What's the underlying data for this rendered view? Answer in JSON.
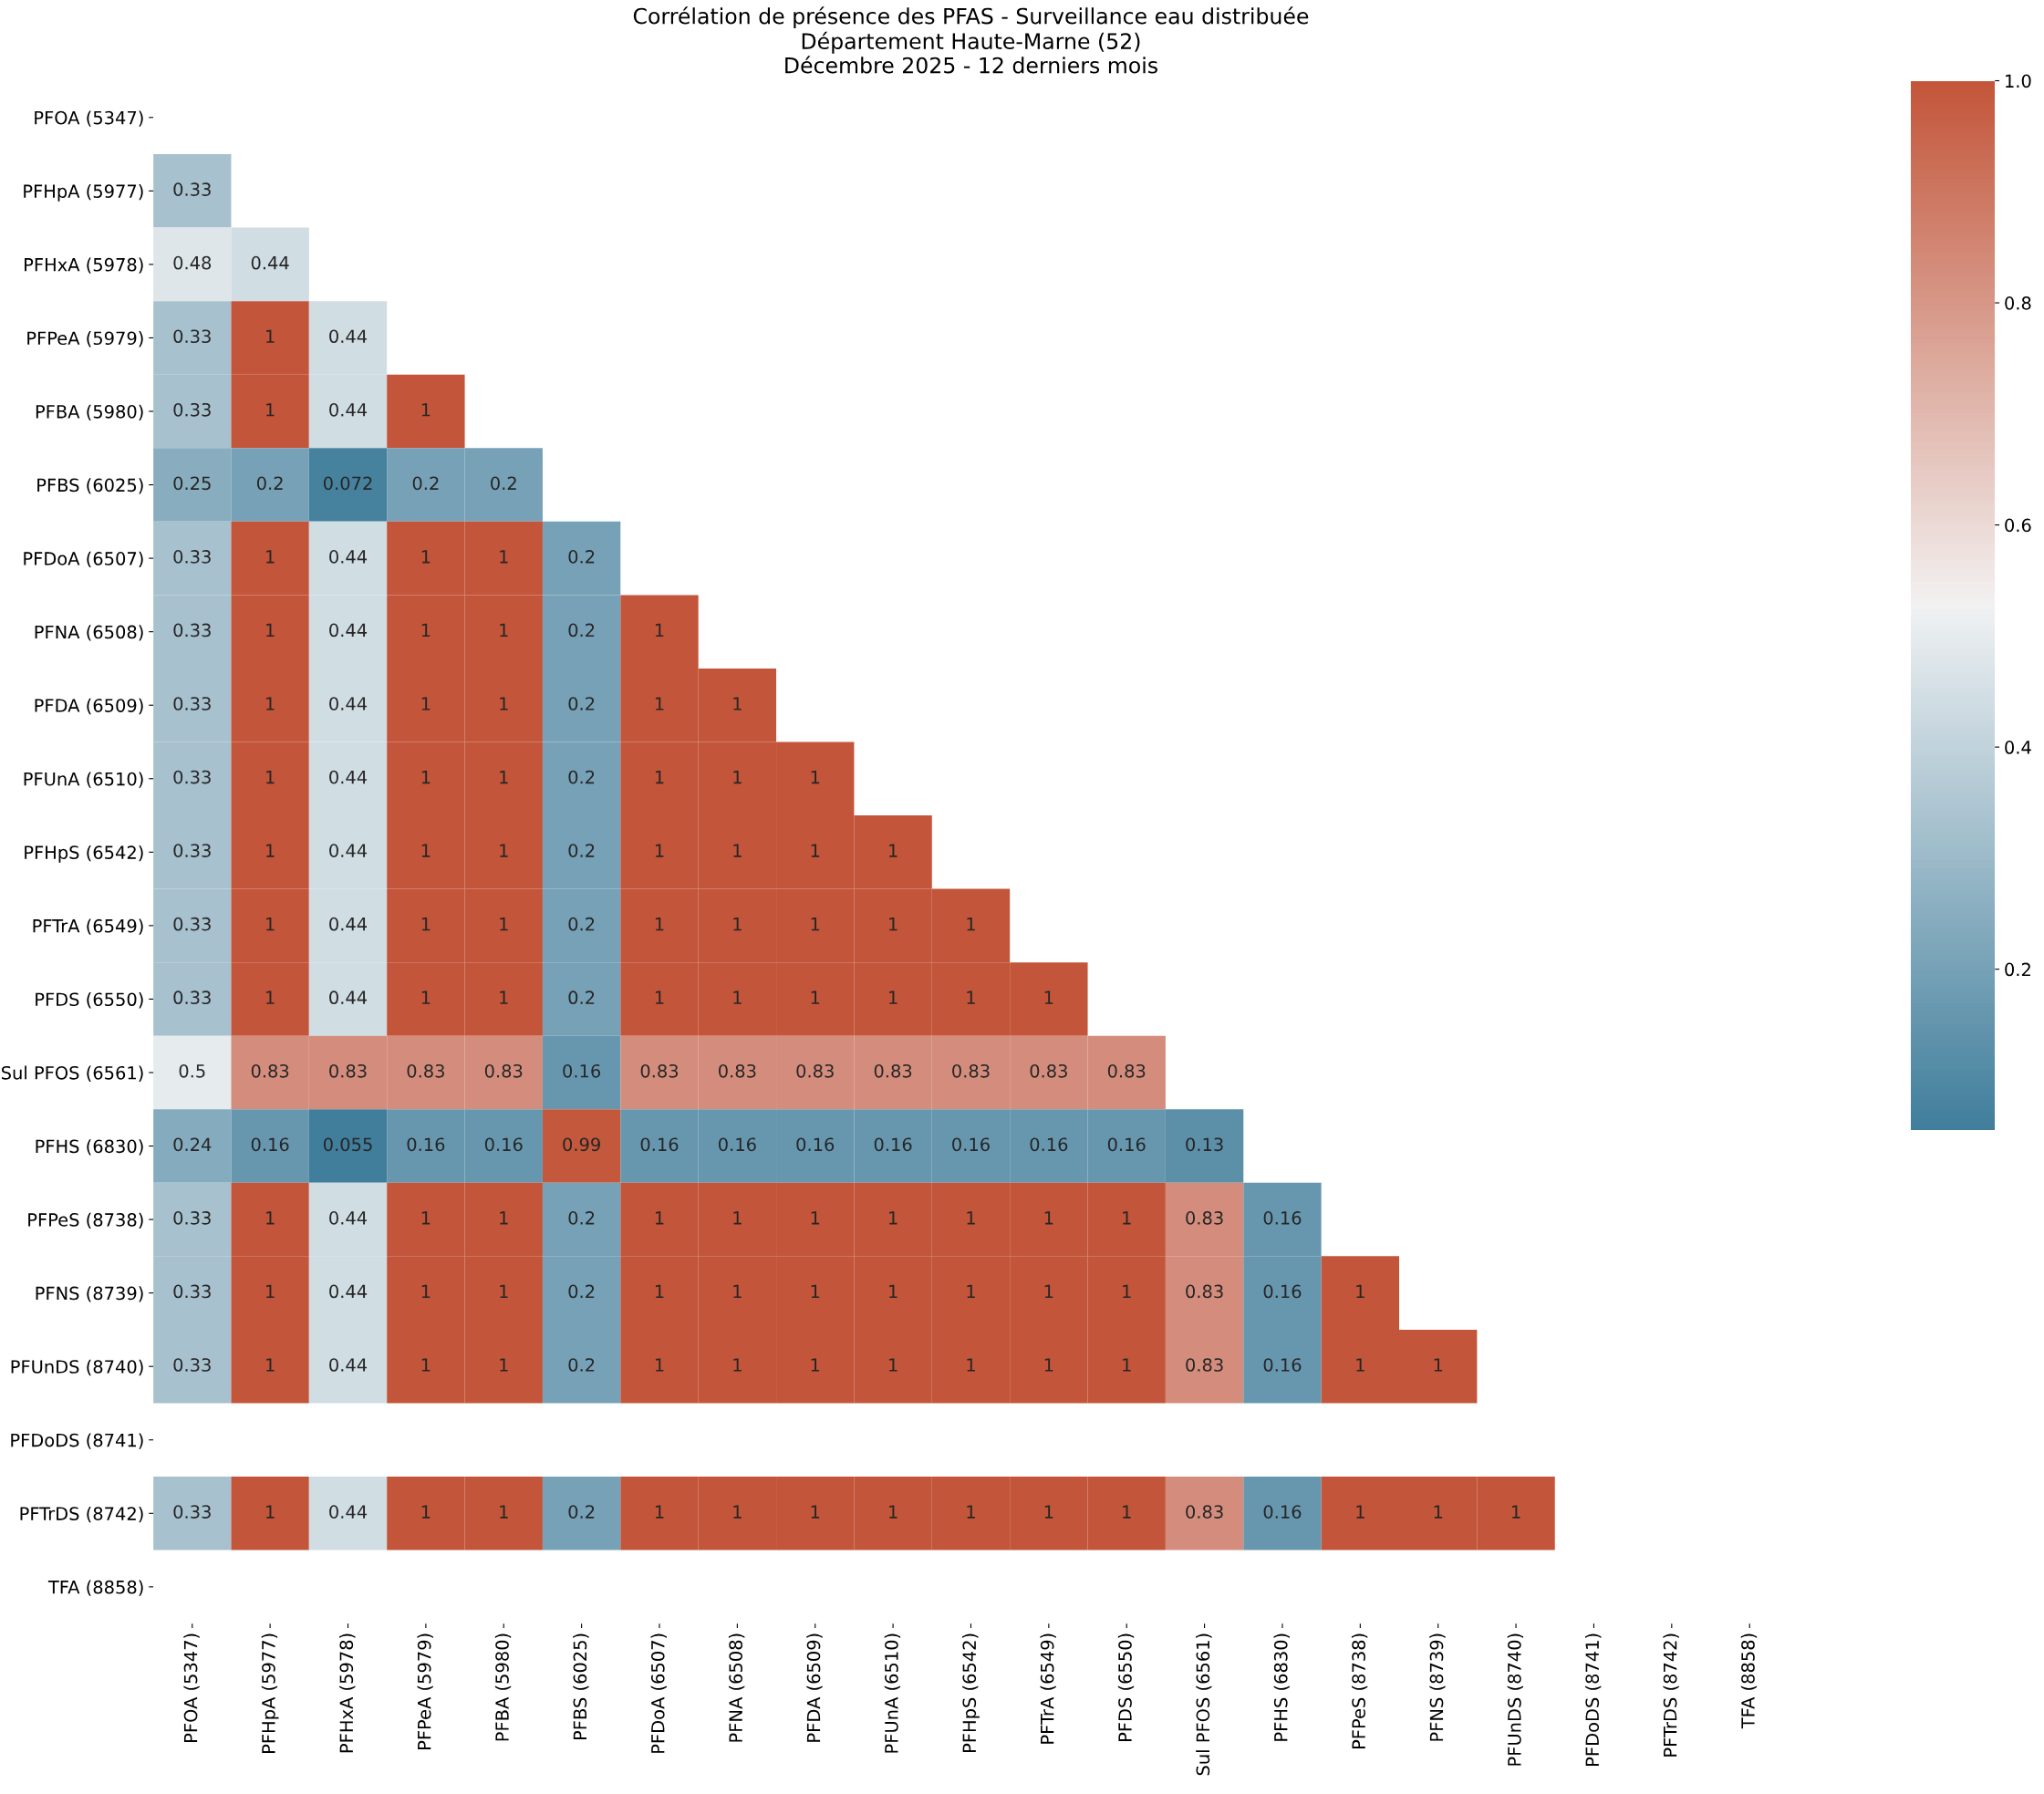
{
  "chart_data": {
    "type": "heatmap",
    "title": "Corrélation de présence des PFAS - Surveillance eau distribuée\nDépartement Haute-Marne (52)\nDécembre 2025 - 12 derniers mois",
    "categories": [
      "PFOA (5347)",
      "PFHpA (5977)",
      "PFHxA (5978)",
      "PFPeA (5979)",
      "PFBA (5980)",
      "PFBS (6025)",
      "PFDoA (6507)",
      "PFNA (6508)",
      "PFDA (6509)",
      "PFUnA (6510)",
      "PFHpS (6542)",
      "PFTrA (6549)",
      "PFDS (6550)",
      "Sul PFOS (6561)",
      "PFHS (6830)",
      "PFPeS (8738)",
      "PFNS (8739)",
      "PFUnDS (8740)",
      "PFDoDS (8741)",
      "PFTrDS (8742)",
      "TFA (8858)"
    ],
    "y_categories": [
      "PFOA (5347)",
      "PFHpA (5977)",
      "PFHxA (5978)",
      "PFPeA (5979)",
      "PFBA (5980)",
      "PFBS (6025)",
      "PFDoA (6507)",
      "PFNA (6508)",
      "PFDA (6509)",
      "PFUnA (6510)",
      "PFHpS (6542)",
      "PFTrA (6549)",
      "PFDS (6550)",
      "Sul PFOS (6561)",
      "PFHS (6830)",
      "PFPeS (8738)",
      "PFNS (8739)",
      "PFUnDS (8740)",
      "PFDoDS (8741)",
      "PFTrDS (8742)",
      "TFA (8858)"
    ],
    "cells": [
      [
        null,
        null,
        null,
        null,
        null,
        null,
        null,
        null,
        null,
        null,
        null,
        null,
        null,
        null,
        null,
        null,
        null,
        null,
        null,
        null,
        null
      ],
      [
        0.33,
        null,
        null,
        null,
        null,
        null,
        null,
        null,
        null,
        null,
        null,
        null,
        null,
        null,
        null,
        null,
        null,
        null,
        null,
        null,
        null
      ],
      [
        0.48,
        0.44,
        null,
        null,
        null,
        null,
        null,
        null,
        null,
        null,
        null,
        null,
        null,
        null,
        null,
        null,
        null,
        null,
        null,
        null,
        null
      ],
      [
        0.33,
        1,
        0.44,
        null,
        null,
        null,
        null,
        null,
        null,
        null,
        null,
        null,
        null,
        null,
        null,
        null,
        null,
        null,
        null,
        null,
        null
      ],
      [
        0.33,
        1,
        0.44,
        1,
        null,
        null,
        null,
        null,
        null,
        null,
        null,
        null,
        null,
        null,
        null,
        null,
        null,
        null,
        null,
        null,
        null
      ],
      [
        0.25,
        0.2,
        0.072,
        0.2,
        0.2,
        null,
        null,
        null,
        null,
        null,
        null,
        null,
        null,
        null,
        null,
        null,
        null,
        null,
        null,
        null,
        null
      ],
      [
        0.33,
        1,
        0.44,
        1,
        1,
        0.2,
        null,
        null,
        null,
        null,
        null,
        null,
        null,
        null,
        null,
        null,
        null,
        null,
        null,
        null,
        null
      ],
      [
        0.33,
        1,
        0.44,
        1,
        1,
        0.2,
        1,
        null,
        null,
        null,
        null,
        null,
        null,
        null,
        null,
        null,
        null,
        null,
        null,
        null,
        null
      ],
      [
        0.33,
        1,
        0.44,
        1,
        1,
        0.2,
        1,
        1,
        null,
        null,
        null,
        null,
        null,
        null,
        null,
        null,
        null,
        null,
        null,
        null,
        null
      ],
      [
        0.33,
        1,
        0.44,
        1,
        1,
        0.2,
        1,
        1,
        1,
        null,
        null,
        null,
        null,
        null,
        null,
        null,
        null,
        null,
        null,
        null,
        null
      ],
      [
        0.33,
        1,
        0.44,
        1,
        1,
        0.2,
        1,
        1,
        1,
        1,
        null,
        null,
        null,
        null,
        null,
        null,
        null,
        null,
        null,
        null,
        null
      ],
      [
        0.33,
        1,
        0.44,
        1,
        1,
        0.2,
        1,
        1,
        1,
        1,
        1,
        null,
        null,
        null,
        null,
        null,
        null,
        null,
        null,
        null,
        null
      ],
      [
        0.33,
        1,
        0.44,
        1,
        1,
        0.2,
        1,
        1,
        1,
        1,
        1,
        1,
        null,
        null,
        null,
        null,
        null,
        null,
        null,
        null,
        null
      ],
      [
        0.5,
        0.83,
        0.83,
        0.83,
        0.83,
        0.16,
        0.83,
        0.83,
        0.83,
        0.83,
        0.83,
        0.83,
        0.83,
        null,
        null,
        null,
        null,
        null,
        null,
        null,
        null
      ],
      [
        0.24,
        0.16,
        0.055,
        0.16,
        0.16,
        0.99,
        0.16,
        0.16,
        0.16,
        0.16,
        0.16,
        0.16,
        0.16,
        0.13,
        null,
        null,
        null,
        null,
        null,
        null,
        null
      ],
      [
        0.33,
        1,
        0.44,
        1,
        1,
        0.2,
        1,
        1,
        1,
        1,
        1,
        1,
        1,
        0.83,
        0.16,
        null,
        null,
        null,
        null,
        null,
        null
      ],
      [
        0.33,
        1,
        0.44,
        1,
        1,
        0.2,
        1,
        1,
        1,
        1,
        1,
        1,
        1,
        0.83,
        0.16,
        1,
        null,
        null,
        null,
        null,
        null
      ],
      [
        0.33,
        1,
        0.44,
        1,
        1,
        0.2,
        1,
        1,
        1,
        1,
        1,
        1,
        1,
        0.83,
        0.16,
        1,
        1,
        null,
        null,
        null,
        null
      ],
      [
        null,
        null,
        null,
        null,
        null,
        null,
        null,
        null,
        null,
        null,
        null,
        null,
        null,
        null,
        null,
        null,
        null,
        null,
        null,
        null,
        null
      ],
      [
        0.33,
        1,
        0.44,
        1,
        1,
        0.2,
        1,
        1,
        1,
        1,
        1,
        1,
        1,
        0.83,
        0.16,
        1,
        1,
        1,
        null,
        null,
        null
      ],
      [
        null,
        null,
        null,
        null,
        null,
        null,
        null,
        null,
        null,
        null,
        null,
        null,
        null,
        null,
        null,
        null,
        null,
        null,
        null,
        null,
        null
      ]
    ],
    "clim": [
      0.055,
      1
    ],
    "cticks": [
      0.2,
      0.4,
      0.6,
      0.8,
      {
        "value": 1,
        "label": "1.0"
      }
    ],
    "data_labels": true
  }
}
